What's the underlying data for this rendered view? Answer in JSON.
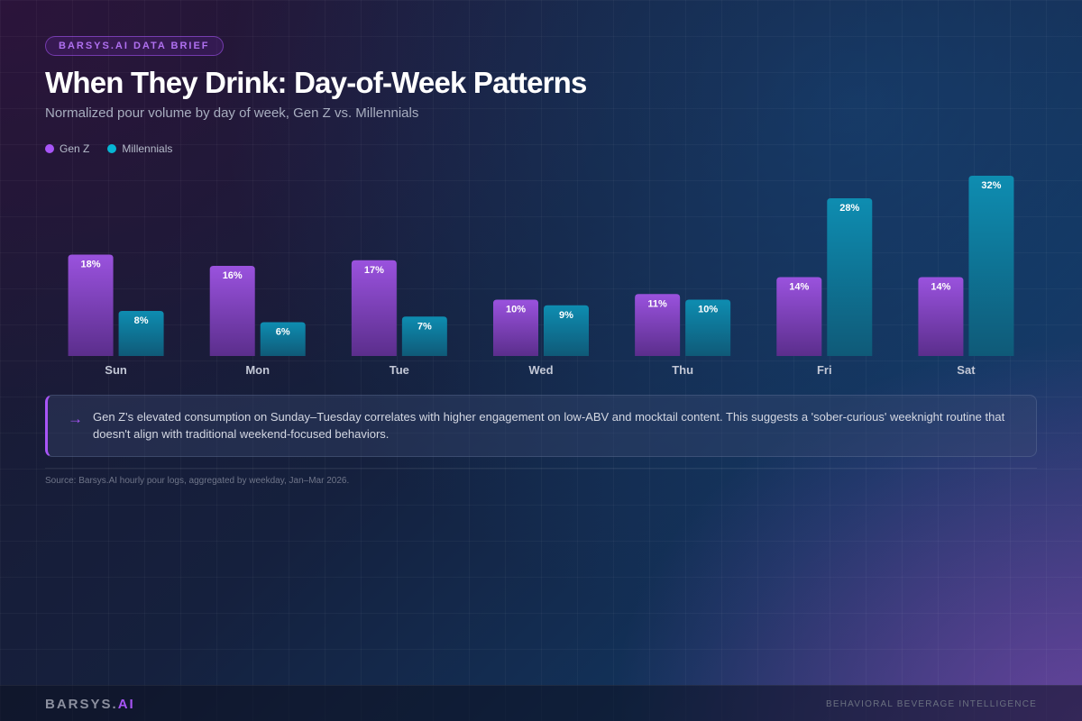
{
  "header": {
    "badge": "BARSYS.AI DATA BRIEF",
    "title": "When They Drink: Day-of-Week Patterns",
    "subtitle": "Normalized pour volume by day of week, Gen Z vs. Millennials"
  },
  "colors": {
    "genz": "#a855f7",
    "millennials": "#06b6d4"
  },
  "chart_data": {
    "type": "bar",
    "title": "When They Drink: Day-of-Week Patterns",
    "xlabel": "",
    "ylabel": "",
    "ylim": [
      0,
      32
    ],
    "grid": false,
    "legend": "top-left",
    "categories": [
      "Sun",
      "Mon",
      "Tue",
      "Wed",
      "Thu",
      "Fri",
      "Sat"
    ],
    "series": [
      {
        "name": "Gen Z",
        "values": [
          18,
          16,
          17,
          10,
          11,
          14,
          14
        ],
        "labels": [
          "18%",
          "16%",
          "17%",
          "10%",
          "11%",
          "14%",
          "14%"
        ]
      },
      {
        "name": "Millennials",
        "values": [
          8,
          6,
          7,
          9,
          10,
          28,
          32
        ],
        "labels": [
          "8%",
          "6%",
          "7%",
          "9%",
          "10%",
          "28%",
          "32%"
        ]
      }
    ]
  },
  "insight": {
    "arrow": "→",
    "text": "Gen Z's elevated consumption on Sunday–Tuesday correlates with higher engagement on low-ABV and mocktail content. This suggests a 'sober-curious' weeknight routine that doesn't align with traditional weekend-focused behaviors."
  },
  "source": "Source: Barsys.AI hourly pour logs, aggregated by weekday, Jan–Mar 2026.",
  "footer": {
    "brand_main": "BARSYS.",
    "brand_accent": "AI",
    "tagline": "BEHAVIORAL BEVERAGE INTELLIGENCE"
  }
}
